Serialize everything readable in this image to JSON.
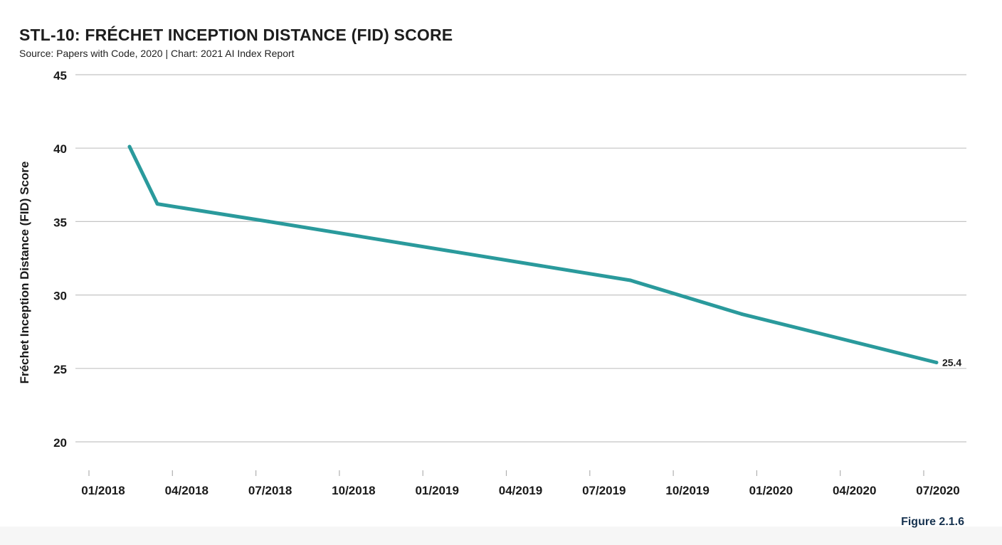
{
  "header": {
    "title": "STL-10: FRÉCHET INCEPTION DISTANCE (FID) SCORE",
    "subtitle": "Source: Papers with Code, 2020 | Chart: 2021 AI Index Report"
  },
  "footer": {
    "figure_label": "Figure 2.1.6"
  },
  "chart_data": {
    "type": "line",
    "ylabel": "Fréchet Inception Distance (FID) Score",
    "xlabel": "",
    "ylim": [
      20,
      45
    ],
    "yticks": [
      20,
      25,
      30,
      35,
      40,
      45
    ],
    "xticks": [
      "01/2018",
      "04/2018",
      "07/2018",
      "10/2018",
      "01/2019",
      "04/2019",
      "07/2019",
      "10/2019",
      "01/2020",
      "04/2020",
      "07/2020"
    ],
    "grid": "horizontal",
    "line_color": "#2a9a9c",
    "series": [
      {
        "x": [
          "2018-02-15",
          "2018-03-15",
          "2018-07-15",
          "2019-08-15",
          "2019-12-15",
          "2020-07-15"
        ],
        "y": [
          40.1,
          36.2,
          35.0,
          31.0,
          28.7,
          25.4
        ]
      }
    ],
    "annotations": [
      {
        "x": "2020-07-15",
        "text": "25.4"
      }
    ]
  }
}
